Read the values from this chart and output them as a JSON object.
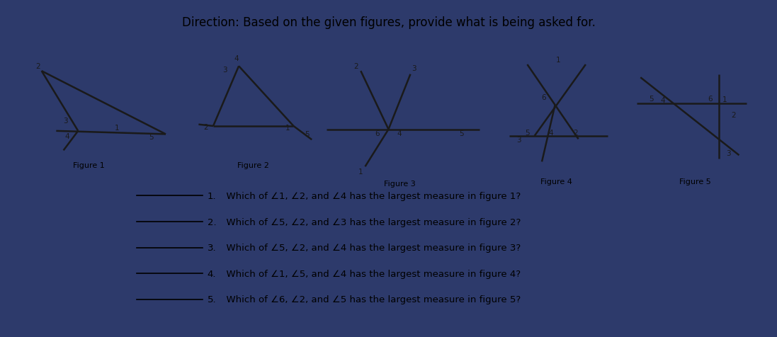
{
  "title": "Direction: Based on the given figures, provide what is being asked for.",
  "title_fontsize": 12,
  "outer_bg": "#2d3a6b",
  "inner_bg": "#d8dce8",
  "line_color": "#1a1a1a",
  "label_color": "#1a1a1a",
  "fig_labels": [
    "Figure 1",
    "Figure 2",
    "Figure 3",
    "Figure 4",
    "Figure 5"
  ],
  "q_lines": [
    "1.   Which of ∠1, ∠2, and ∠4 has the largest measure in figure 1?",
    "2.   Which of ∠5, ∠2, and ∠3 has the largest measure in figure 2?",
    "3.   Which of ∠5, ∠2, and ∠4 has the largest measure in figure 3?",
    "4.   Which of ∠1, ∠5, and ∠4 has the largest measure in figure 4?",
    "5.   Which of ∠6, ∠2, and ∠5 has the largest measure in figure 5?"
  ]
}
